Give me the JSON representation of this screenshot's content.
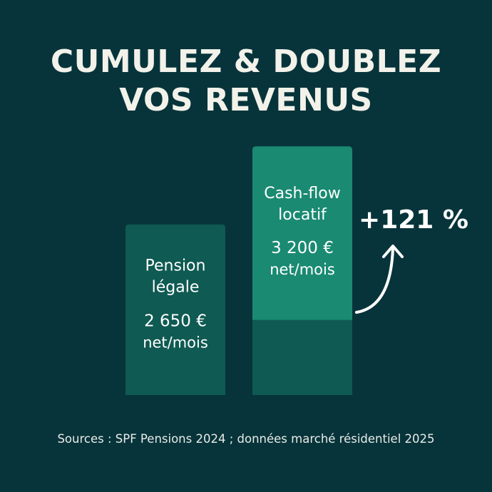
{
  "title": {
    "line1": "CUMULEZ & DOUBLEZ",
    "line2": "VOS REVENUS"
  },
  "chart_data": {
    "type": "bar",
    "categories": [
      "Pension légale",
      "Cash-flow locatif"
    ],
    "values": [
      2650,
      3200
    ],
    "unit": "€ net/mois",
    "bars": [
      {
        "label_lines": [
          "Pension",
          "légale"
        ],
        "value_text": "2 650 €",
        "unit_text": "net/mois",
        "value": 2650,
        "color": "#0f5a52"
      },
      {
        "label_lines": [
          "Cash-flow",
          "locatif"
        ],
        "value_text": "3 200 €",
        "unit_text": "net/mois",
        "value": 3200,
        "color": "#1a8a72",
        "base_color": "#0f5a52",
        "stacked_on": 2650
      }
    ],
    "annotation": "+121 %",
    "xlabel": "",
    "ylabel": ""
  },
  "source": "Sources : SPF Pensions 2024 ; données marché résidentiel 2025",
  "colors": {
    "background": "#07343a",
    "bar_dark": "#0f5a52",
    "bar_accent": "#1a8a72",
    "text": "#ffffff"
  }
}
